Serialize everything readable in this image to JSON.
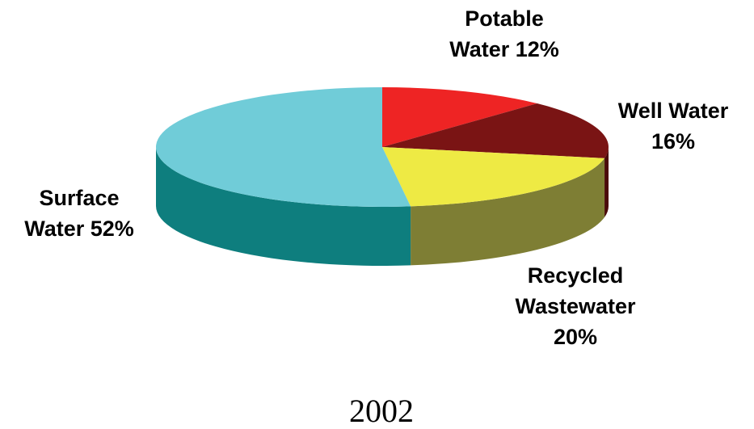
{
  "chart_data": {
    "type": "pie",
    "style": "3d",
    "title": "",
    "caption": "2002",
    "start_angle_deg": -90,
    "direction": "clockwise",
    "slices": [
      {
        "name": "Potable Water",
        "value": 12,
        "label_lines": [
          "Potable",
          "Water 12%"
        ],
        "top_color": "#ee2424",
        "side_color": "#9a1414"
      },
      {
        "name": "Well Water",
        "value": 16,
        "label_lines": [
          "Well Water",
          "16%"
        ],
        "top_color": "#7a1414",
        "side_color": "#4a0a0a"
      },
      {
        "name": "Recycled Wastewater",
        "value": 20,
        "label_lines": [
          "Recycled",
          "Wastewater",
          "20%"
        ],
        "top_color": "#eeea44",
        "side_color": "#7e7e34"
      },
      {
        "name": "Surface Water",
        "value": 52,
        "label_lines": [
          "Surface",
          "Water 52%"
        ],
        "top_color": "#70ccd8",
        "side_color": "#0e7e7e"
      }
    ]
  }
}
